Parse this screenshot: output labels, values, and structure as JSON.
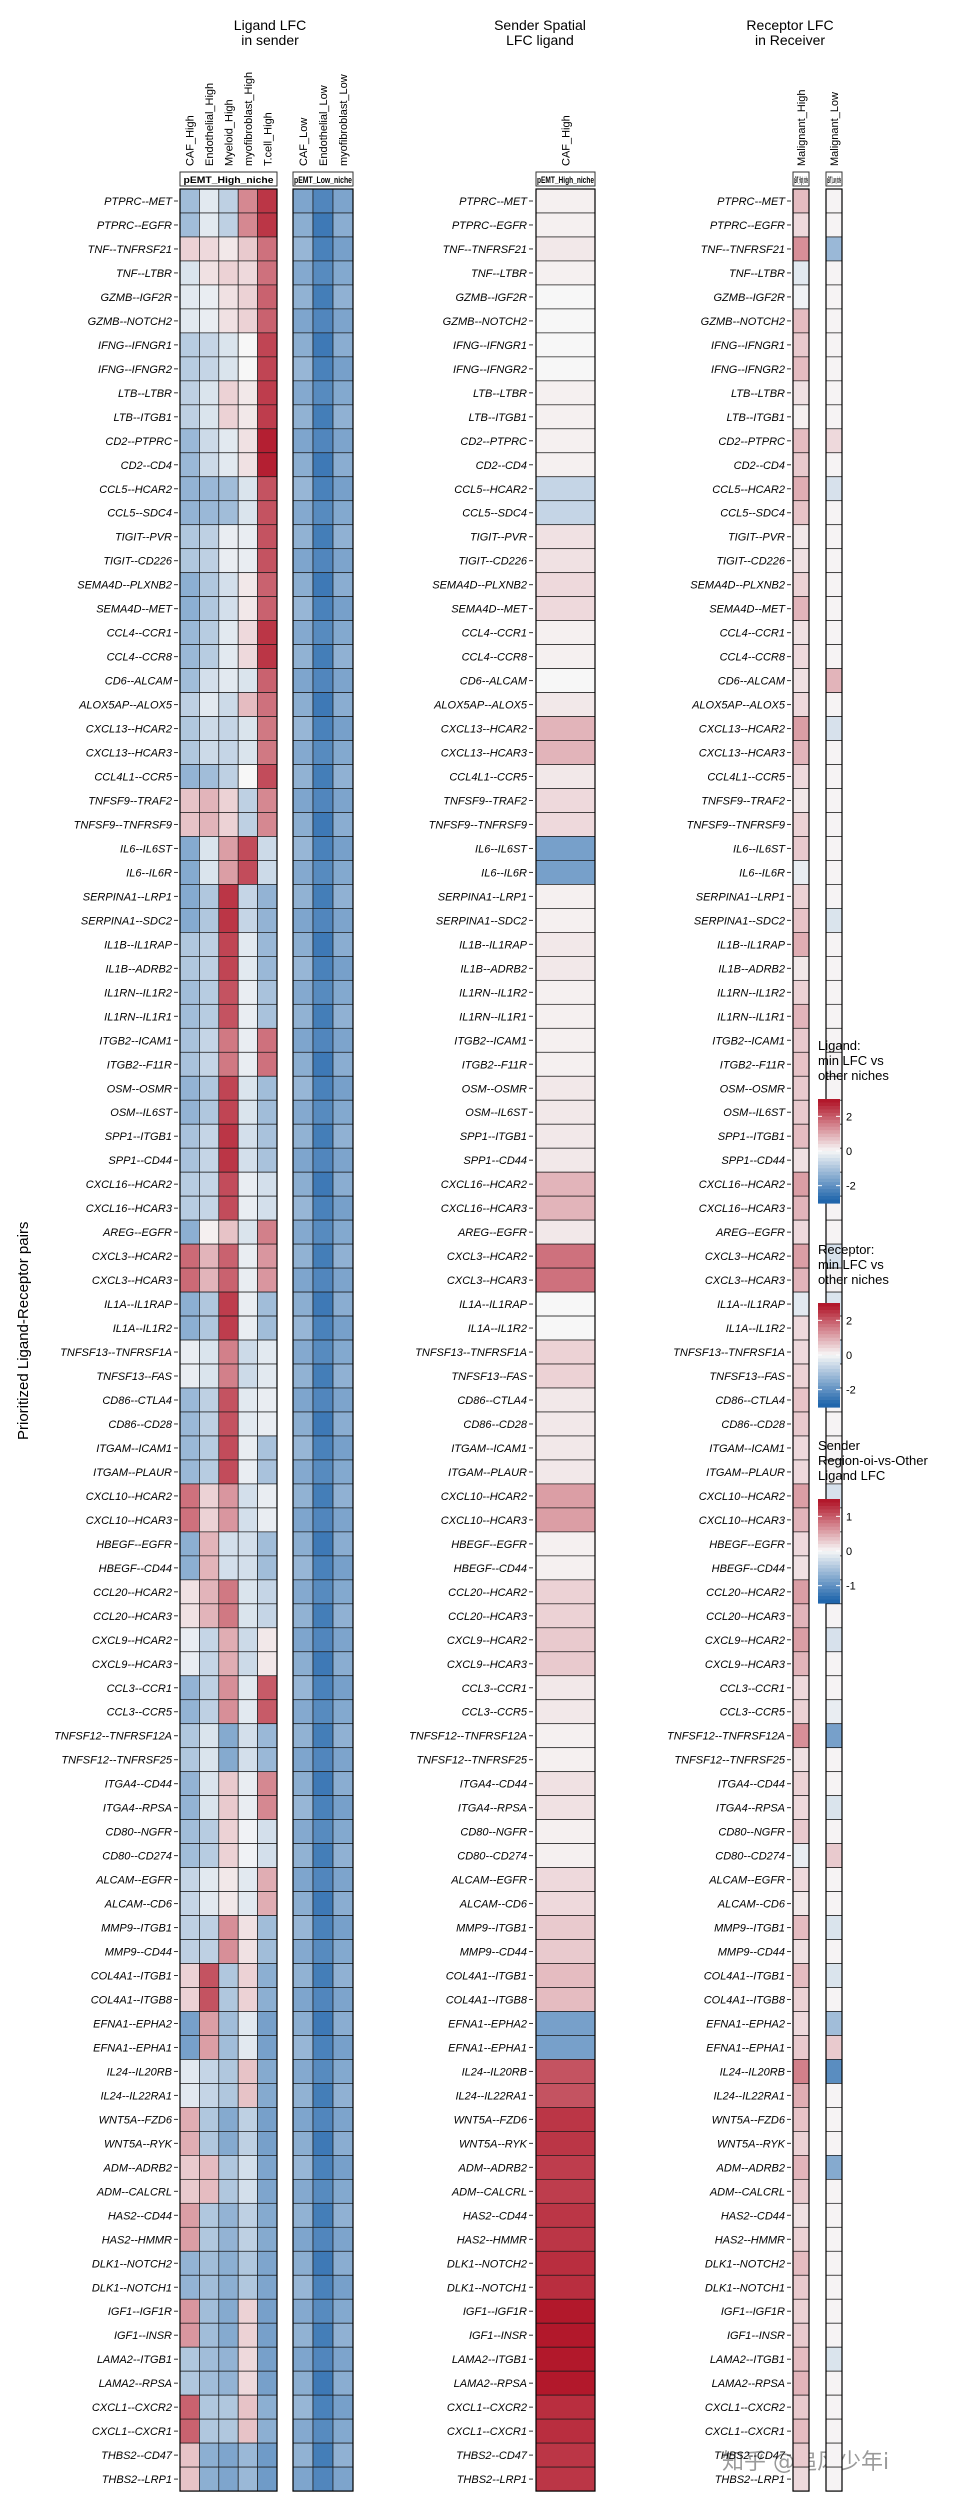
{
  "panel_titles": {
    "ligand": "Ligand LFC\nin sender",
    "spatial": "Sender Spatial\nLFC ligand",
    "receptor": "Receptor LFC\nin Receiver"
  },
  "y_axis_label": "Prioritized Ligand-Receptor pairs",
  "watermark": "知乎 @追风少年i",
  "chart_data": {
    "type": "heatmap",
    "pairs": [
      "PTPRC--MET",
      "PTPRC--EGFR",
      "TNF--TNFRSF21",
      "TNF--LTBR",
      "GZMB--IGF2R",
      "GZMB--NOTCH2",
      "IFNG--IFNGR1",
      "IFNG--IFNGR2",
      "LTB--LTBR",
      "LTB--ITGB1",
      "CD2--PTPRC",
      "CD2--CD4",
      "CCL5--HCAR2",
      "CCL5--SDC4",
      "TIGIT--PVR",
      "TIGIT--CD226",
      "SEMA4D--PLXNB2",
      "SEMA4D--MET",
      "CCL4--CCR1",
      "CCL4--CCR8",
      "CD6--ALCAM",
      "ALOX5AP--ALOX5",
      "CXCL13--HCAR2",
      "CXCL13--HCAR3",
      "CCL4L1--CCR5",
      "TNFSF9--TRAF2",
      "TNFSF9--TNFRSF9",
      "IL6--IL6ST",
      "IL6--IL6R",
      "SERPINA1--LRP1",
      "SERPINA1--SDC2",
      "IL1B--IL1RAP",
      "IL1B--ADRB2",
      "IL1RN--IL1R2",
      "IL1RN--IL1R1",
      "ITGB2--ICAM1",
      "ITGB2--F11R",
      "OSM--OSMR",
      "OSM--IL6ST",
      "SPP1--ITGB1",
      "SPP1--CD44",
      "CXCL16--HCAR2",
      "CXCL16--HCAR3",
      "AREG--EGFR",
      "CXCL3--HCAR2",
      "CXCL3--HCAR3",
      "IL1A--IL1RAP",
      "IL1A--IL1R2",
      "TNFSF13--TNFRSF1A",
      "TNFSF13--FAS",
      "CD86--CTLA4",
      "CD86--CD28",
      "ITGAM--ICAM1",
      "ITGAM--PLAUR",
      "CXCL10--HCAR2",
      "CXCL10--HCAR3",
      "HBEGF--EGFR",
      "HBEGF--CD44",
      "CCL20--HCAR2",
      "CCL20--HCAR3",
      "CXCL9--HCAR2",
      "CXCL9--HCAR3",
      "CCL3--CCR1",
      "CCL3--CCR5",
      "TNFSF12--TNFRSF12A",
      "TNFSF12--TNFRSF25",
      "ITGA4--CD44",
      "ITGA4--RPSA",
      "CD80--NGFR",
      "CD80--CD274",
      "ALCAM--EGFR",
      "ALCAM--CD6",
      "MMP9--ITGB1",
      "MMP9--CD44",
      "COL4A1--ITGB1",
      "COL4A1--ITGB8",
      "EFNA1--EPHA2",
      "EFNA1--EPHA1",
      "IL24--IL20RB",
      "IL24--IL22RA1",
      "WNT5A--FZD6",
      "WNT5A--RYK",
      "ADM--ADRB2",
      "ADM--CALCRL",
      "HAS2--CD44",
      "HAS2--HMMR",
      "DLK1--NOTCH2",
      "DLK1--NOTCH1",
      "IGF1--IGF1R",
      "IGF1--INSR",
      "LAMA2--ITGB1",
      "LAMA2--RPSA",
      "CXCL1--CXCR2",
      "CXCL1--CXCR1",
      "THBS2--CD47",
      "THBS2--LRP1"
    ],
    "panels": [
      {
        "id": "ligand_high",
        "title": "Ligand LFC in sender",
        "strip": "pEMT_High_niche",
        "columns": [
          "CAF_High",
          "Endothelial_High",
          "Myeloid_High",
          "myofibroblast_High",
          "T.cell_High"
        ]
      },
      {
        "id": "ligand_low",
        "title": "Ligand LFC in sender",
        "strip": "pEMT_Low_niche",
        "columns": [
          "CAF_Low",
          "Endothelial_Low",
          "myofibroblast_Low"
        ]
      },
      {
        "id": "spatial",
        "title": "Sender Spatial LFC ligand",
        "strip": "pEMT_High_niche",
        "columns": [
          "CAF_High"
        ]
      },
      {
        "id": "rec_high",
        "title": "Receptor LFC in Receiver",
        "strip": "pEMT_High_niche",
        "columns": [
          "Malignant_High"
        ]
      },
      {
        "id": "rec_low",
        "title": "Receptor LFC in Receiver",
        "strip": "pEMT_Low_niche",
        "columns": [
          "Malignant_Low"
        ]
      }
    ],
    "legends": [
      {
        "title": "Ligand:\nmin LFC vs\nother niches",
        "ticks": [
          2,
          0,
          -2
        ],
        "range": [
          -3,
          3
        ]
      },
      {
        "title": "Receptor:\nmin LFC vs\nother niches",
        "ticks": [
          2,
          0,
          -2
        ],
        "range": [
          -3,
          3
        ]
      },
      {
        "title": "Sender\nRegion-oi-vs-Other\nLigand LFC",
        "ticks": [
          1,
          0,
          -1
        ],
        "range": [
          -1.5,
          1.5
        ]
      }
    ],
    "colors": {
      "low": "#2166ac",
      "mid": "#f7f7f7",
      "high": "#b2182b"
    },
    "values": {
      "ligand_high": [
        [
          -1.2,
          -0.3,
          -0.8,
          1.5,
          2.6
        ],
        [
          -1.2,
          -0.3,
          -0.8,
          1.5,
          2.6
        ],
        [
          0.5,
          0.4,
          0.2,
          0.6,
          1.8
        ],
        [
          -0.4,
          0.3,
          0.5,
          0.4,
          1.8
        ],
        [
          -0.3,
          -0.2,
          0.3,
          0.5,
          2.0
        ],
        [
          -0.3,
          -0.2,
          0.3,
          0.5,
          2.0
        ],
        [
          -0.9,
          -0.7,
          -0.4,
          0.0,
          2.4
        ],
        [
          -0.9,
          -0.7,
          -0.4,
          0.0,
          2.4
        ],
        [
          -0.8,
          -0.4,
          0.5,
          0.2,
          2.5
        ],
        [
          -0.8,
          -0.4,
          0.5,
          0.2,
          2.5
        ],
        [
          -1.3,
          -0.6,
          -0.3,
          0.3,
          2.9
        ],
        [
          -1.3,
          -0.6,
          -0.3,
          0.3,
          2.9
        ],
        [
          -1.4,
          -1.3,
          -1.2,
          -0.4,
          2.2
        ],
        [
          -1.4,
          -1.3,
          -1.2,
          -0.4,
          2.2
        ],
        [
          -1.0,
          -0.8,
          -0.2,
          -0.2,
          2.2
        ],
        [
          -1.0,
          -0.8,
          -0.2,
          -0.2,
          2.2
        ],
        [
          -1.5,
          -1.0,
          -0.5,
          0.2,
          2.0
        ],
        [
          -1.5,
          -1.0,
          -0.5,
          0.2,
          2.0
        ],
        [
          -1.3,
          -0.9,
          -0.3,
          0.4,
          2.6
        ],
        [
          -1.3,
          -0.9,
          -0.3,
          0.4,
          2.6
        ],
        [
          -1.2,
          -0.5,
          -0.3,
          -0.4,
          2.0
        ],
        [
          -0.8,
          -0.3,
          -0.6,
          0.8,
          1.8
        ],
        [
          -1.0,
          -0.6,
          -0.7,
          -0.4,
          1.7
        ],
        [
          -1.0,
          -0.6,
          -0.7,
          -0.4,
          1.7
        ],
        [
          -1.4,
          -1.2,
          -0.8,
          0.0,
          2.3
        ],
        [
          0.7,
          0.9,
          0.5,
          -0.8,
          1.5
        ],
        [
          0.7,
          0.9,
          0.5,
          -0.8,
          1.5
        ],
        [
          -1.6,
          -0.4,
          1.2,
          2.3,
          -0.6
        ],
        [
          -1.6,
          -0.4,
          1.2,
          2.3,
          -0.6
        ],
        [
          -1.6,
          -1.0,
          2.6,
          -0.7,
          -1.4
        ],
        [
          -1.6,
          -1.0,
          2.6,
          -0.7,
          -1.4
        ],
        [
          -1.0,
          -0.8,
          2.4,
          -0.3,
          -1.3
        ],
        [
          -1.0,
          -0.8,
          2.4,
          -0.3,
          -1.3
        ],
        [
          -1.2,
          -0.9,
          2.2,
          -0.2,
          -1.1
        ],
        [
          -1.2,
          -0.9,
          2.2,
          -0.2,
          -1.1
        ],
        [
          -1.1,
          -0.7,
          1.7,
          -0.2,
          1.8
        ],
        [
          -1.1,
          -0.7,
          1.7,
          -0.2,
          1.8
        ],
        [
          -1.4,
          -1.0,
          2.4,
          -0.4,
          -1.2
        ],
        [
          -1.4,
          -1.0,
          2.4,
          -0.4,
          -1.2
        ],
        [
          -1.1,
          -0.7,
          2.6,
          -0.5,
          -1.1
        ],
        [
          -1.1,
          -0.7,
          2.6,
          -0.5,
          -1.1
        ],
        [
          -0.9,
          -0.7,
          2.3,
          -0.2,
          -0.5
        ],
        [
          -0.9,
          -0.7,
          2.3,
          -0.2,
          -0.5
        ],
        [
          -1.5,
          0.1,
          0.7,
          -0.4,
          1.6
        ],
        [
          1.9,
          0.9,
          2.0,
          -0.2,
          1.3
        ],
        [
          1.9,
          0.9,
          2.0,
          -0.2,
          1.3
        ],
        [
          -1.5,
          -1.0,
          2.5,
          -0.2,
          -1.2
        ],
        [
          -1.5,
          -1.0,
          2.5,
          -0.2,
          -1.2
        ],
        [
          -0.2,
          -0.4,
          1.6,
          -0.6,
          -0.3
        ],
        [
          -0.2,
          -0.4,
          1.6,
          -0.6,
          -0.3
        ],
        [
          -1.3,
          -0.8,
          2.2,
          -0.3,
          -0.2
        ],
        [
          -1.3,
          -0.8,
          2.2,
          -0.3,
          -0.2
        ],
        [
          -1.3,
          -0.9,
          2.3,
          -0.2,
          -1.1
        ],
        [
          -1.3,
          -0.9,
          2.3,
          -0.2,
          -1.1
        ],
        [
          1.8,
          0.5,
          1.3,
          -0.5,
          -0.2
        ],
        [
          1.8,
          0.5,
          1.3,
          -0.5,
          -0.2
        ],
        [
          -1.5,
          0.9,
          -0.5,
          -0.5,
          -1.2
        ],
        [
          -1.5,
          0.9,
          -0.5,
          -0.5,
          -1.2
        ],
        [
          0.3,
          0.9,
          1.7,
          -0.4,
          -0.7
        ],
        [
          0.3,
          0.9,
          1.7,
          -0.4,
          -0.7
        ],
        [
          -0.2,
          -0.7,
          1.0,
          -0.6,
          0.2
        ],
        [
          -0.2,
          -0.7,
          1.0,
          -0.6,
          0.2
        ],
        [
          -1.4,
          -0.8,
          1.4,
          -0.3,
          2.1
        ],
        [
          -1.4,
          -0.8,
          1.4,
          -0.3,
          2.1
        ],
        [
          -1.0,
          -0.4,
          -1.6,
          -0.5,
          -1.3
        ],
        [
          -1.0,
          -0.4,
          -1.6,
          -0.5,
          -1.3
        ],
        [
          -1.4,
          -0.4,
          0.6,
          -0.2,
          1.5
        ],
        [
          -1.4,
          -0.4,
          0.6,
          -0.2,
          1.5
        ],
        [
          -1.2,
          -0.9,
          0.5,
          -0.1,
          -0.5
        ],
        [
          -1.2,
          -0.9,
          0.5,
          -0.1,
          -0.5
        ],
        [
          -0.7,
          -0.3,
          0.2,
          -0.3,
          1.0
        ],
        [
          -0.7,
          -0.3,
          0.2,
          -0.3,
          1.0
        ],
        [
          -0.8,
          -0.8,
          1.4,
          0.3,
          -1.2
        ],
        [
          -0.8,
          -0.8,
          1.4,
          0.3,
          -1.2
        ],
        [
          0.5,
          2.2,
          -1.0,
          0.5,
          -1.5
        ],
        [
          0.5,
          2.2,
          -1.0,
          0.5,
          -1.5
        ],
        [
          -1.8,
          1.2,
          -1.2,
          -0.3,
          -1.8
        ],
        [
          -1.8,
          1.2,
          -1.2,
          -0.3,
          -1.8
        ],
        [
          -0.3,
          -0.7,
          -1.0,
          0.7,
          -1.6
        ],
        [
          -0.3,
          -0.7,
          -1.0,
          0.7,
          -1.6
        ],
        [
          1.0,
          -1.0,
          -1.6,
          -0.8,
          -1.8
        ],
        [
          1.0,
          -1.0,
          -1.6,
          -0.8,
          -1.8
        ],
        [
          0.6,
          0.8,
          -1.0,
          -0.5,
          -1.7
        ],
        [
          0.6,
          0.8,
          -1.0,
          -0.5,
          -1.7
        ],
        [
          1.2,
          -1.0,
          -1.4,
          -0.8,
          -1.6
        ],
        [
          1.2,
          -1.0,
          -1.4,
          -0.8,
          -1.6
        ],
        [
          -1.4,
          -1.2,
          -1.5,
          -1.0,
          -1.7
        ],
        [
          -1.4,
          -1.2,
          -1.5,
          -1.0,
          -1.7
        ],
        [
          1.3,
          -1.2,
          -1.6,
          0.5,
          -1.8
        ],
        [
          1.3,
          -1.2,
          -1.6,
          0.5,
          -1.8
        ],
        [
          -1.0,
          -1.2,
          -1.4,
          0.4,
          -1.8
        ],
        [
          -1.0,
          -1.2,
          -1.4,
          0.4,
          -1.8
        ],
        [
          2.0,
          -1.0,
          -1.0,
          0.7,
          -1.5
        ],
        [
          2.0,
          -1.0,
          -1.0,
          0.7,
          -1.5
        ],
        [
          0.7,
          -1.5,
          -1.7,
          -1.3,
          -1.9
        ],
        [
          0.7,
          -1.5,
          -1.7,
          -1.3,
          -1.9
        ]
      ],
      "ligand_low_base": [
        -1.7,
        -2.6,
        -1.8
      ],
      "spatial": [
        0.05,
        0.05,
        0.1,
        0.05,
        0.0,
        0.0,
        0.0,
        0.0,
        0.05,
        0.05,
        0.05,
        0.05,
        -0.35,
        -0.35,
        0.15,
        0.15,
        0.2,
        0.2,
        0.05,
        0.05,
        0.0,
        0.1,
        0.45,
        0.45,
        0.1,
        0.2,
        0.2,
        -0.9,
        -0.9,
        0.05,
        0.05,
        0.1,
        0.1,
        0.05,
        0.05,
        0.05,
        0.05,
        0.1,
        0.1,
        0.1,
        0.1,
        0.45,
        0.45,
        0.1,
        0.9,
        0.9,
        0.0,
        0.0,
        0.25,
        0.25,
        0.1,
        0.1,
        0.1,
        0.1,
        0.6,
        0.6,
        0.05,
        0.05,
        0.25,
        0.25,
        0.3,
        0.3,
        0.1,
        0.1,
        0.05,
        0.05,
        0.15,
        0.15,
        0.05,
        0.05,
        0.2,
        0.2,
        0.3,
        0.3,
        0.4,
        0.4,
        -0.9,
        -0.9,
        1.1,
        1.1,
        1.3,
        1.3,
        1.25,
        1.25,
        1.3,
        1.3,
        1.35,
        1.35,
        1.5,
        1.5,
        1.55,
        1.55,
        1.35,
        1.35,
        1.3,
        1.3
      ],
      "rec_high": [
        0.8,
        0.4,
        1.4,
        -0.3,
        -0.1,
        0.8,
        0.6,
        0.8,
        0.3,
        0.1,
        0.8,
        0.6,
        1.0,
        0.7,
        0.2,
        0.3,
        0.5,
        0.9,
        0.3,
        0.4,
        0.3,
        0.4,
        1.2,
        0.9,
        0.4,
        0.2,
        0.5,
        0.6,
        -0.2,
        0.5,
        0.7,
        1.0,
        0.2,
        0.5,
        0.9,
        0.6,
        0.7,
        0.6,
        0.6,
        0.8,
        0.3,
        1.2,
        0.9,
        0.4,
        1.2,
        0.9,
        -0.3,
        0.4,
        0.4,
        0.5,
        0.7,
        0.6,
        0.4,
        0.4,
        1.2,
        0.9,
        0.4,
        0.3,
        1.2,
        0.9,
        1.2,
        0.9,
        0.4,
        0.5,
        1.4,
        0.3,
        0.5,
        0.4,
        0.6,
        -0.2,
        0.4,
        0.2,
        0.8,
        0.3,
        0.8,
        0.5,
        0.4,
        0.6,
        1.6,
        1.0,
        0.7,
        0.5,
        0.9,
        0.6,
        0.3,
        0.5,
        0.8,
        0.6,
        0.5,
        0.6,
        0.8,
        0.9,
        0.6,
        0.8,
        0.6,
        0.4
      ],
      "rec_low": [
        0.05,
        0.05,
        -1.3,
        0.05,
        0.05,
        0.05,
        0.05,
        0.05,
        0.05,
        0.05,
        0.4,
        0.05,
        -0.45,
        0.05,
        0.05,
        0.05,
        0.05,
        0.05,
        0.05,
        0.05,
        0.9,
        0.05,
        -0.45,
        0.05,
        0.05,
        0.05,
        0.05,
        0.05,
        0.05,
        0.05,
        -0.4,
        0.05,
        0.05,
        0.05,
        0.05,
        0.05,
        0.05,
        0.05,
        0.05,
        0.05,
        0.05,
        -0.45,
        0.05,
        0.05,
        -0.45,
        0.05,
        -0.4,
        0.05,
        -0.7,
        0.05,
        0.05,
        0.05,
        0.05,
        0.05,
        -0.45,
        0.05,
        0.05,
        0.05,
        -0.45,
        0.05,
        -0.45,
        0.05,
        0.05,
        -0.2,
        -1.8,
        0.05,
        0.05,
        -0.4,
        0.05,
        0.6,
        0.05,
        0.05,
        -0.4,
        0.05,
        -0.4,
        0.05,
        -1.2,
        0.6,
        -2.2,
        0.05,
        0.05,
        0.05,
        -1.6,
        0.05,
        0.05,
        0.05,
        0.05,
        0.05,
        0.05,
        0.05,
        -0.4,
        0.05,
        0.05,
        0.05,
        0.05,
        0.05
      ]
    }
  }
}
